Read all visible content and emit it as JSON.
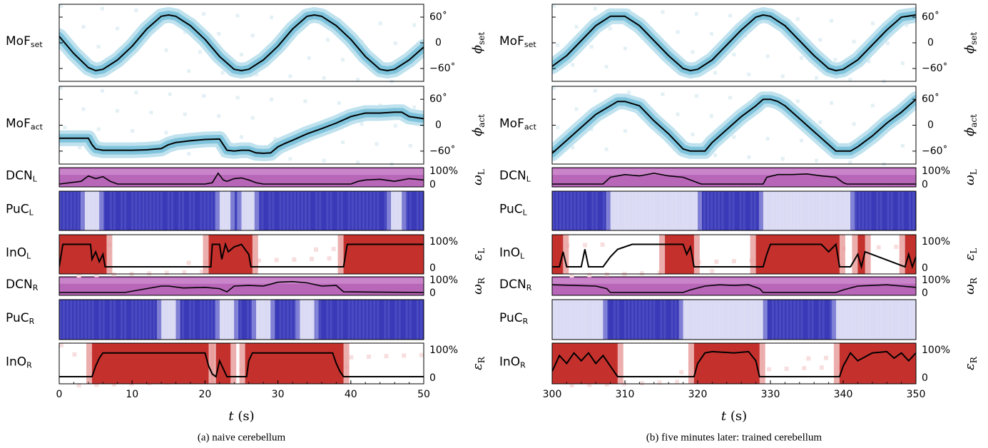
{
  "chart_data": [
    {
      "type": "heatmap",
      "caption": "(a) naive cerebellum",
      "xlabel_var": "t",
      "xlabel_unit": "(s)",
      "xlim": [
        0,
        50
      ],
      "xticks": [
        0,
        10,
        20,
        30,
        40,
        50
      ],
      "phi_set": {
        "row_label": "MoF",
        "row_sub": "set",
        "right_label": "ϕ",
        "right_sub": "set",
        "ylim": [
          -90,
          90
        ],
        "yticks": [
          "60˚",
          "0",
          "−60˚"
        ],
        "t": [
          0,
          2,
          4,
          5,
          6,
          8,
          10,
          12,
          14,
          15,
          16,
          18,
          20,
          22,
          24,
          25,
          26,
          28,
          30,
          32,
          34,
          35,
          36,
          38,
          40,
          42,
          44,
          45,
          46,
          48,
          50
        ],
        "deg": [
          15,
          -25,
          -58,
          -65,
          -62,
          -40,
          -8,
          32,
          62,
          65,
          62,
          40,
          8,
          -32,
          -62,
          -65,
          -62,
          -40,
          -8,
          32,
          62,
          65,
          62,
          40,
          8,
          -32,
          -62,
          -65,
          -62,
          -40,
          -10
        ]
      },
      "phi_act": {
        "row_label": "MoF",
        "row_sub": "act",
        "right_label": "ϕ",
        "right_sub": "act",
        "ylim": [
          -90,
          90
        ],
        "yticks": [
          "60˚",
          "0",
          "−60˚"
        ],
        "t": [
          0,
          2,
          4,
          4.5,
          5,
          6,
          8,
          10,
          12,
          14,
          15,
          16,
          18,
          20,
          22,
          22.5,
          23,
          24,
          25,
          26,
          27,
          28,
          29,
          30,
          31,
          32,
          34,
          36,
          38,
          40,
          42,
          44,
          46,
          47,
          48,
          50
        ],
        "deg": [
          -30,
          -30,
          -30,
          -45,
          -55,
          -58,
          -58,
          -58,
          -57,
          -54,
          -45,
          -40,
          -36,
          -33,
          -32,
          -45,
          -58,
          -60,
          -58,
          -58,
          -64,
          -65,
          -64,
          -50,
          -42,
          -35,
          -20,
          -8,
          5,
          20,
          28,
          28,
          30,
          30,
          20,
          15
        ]
      },
      "dcn_l": {
        "row_label": "DCN",
        "row_sub": "L",
        "right_label": "ω",
        "right_sub": "L",
        "yticks": [
          "100%",
          "0"
        ],
        "t": [
          0,
          3,
          4,
          5,
          6,
          7,
          8,
          20,
          21,
          21.8,
          22.5,
          23,
          24,
          25,
          26,
          27,
          28,
          40,
          41,
          42,
          44,
          46,
          48,
          50
        ],
        "val": [
          0,
          0.2,
          0.6,
          0.4,
          0.55,
          0.2,
          0,
          0,
          0.1,
          0.8,
          0.3,
          0.2,
          0.4,
          0.45,
          0.3,
          0.1,
          0,
          0,
          0.2,
          0.3,
          0.35,
          0.2,
          0.4,
          0.3
        ]
      },
      "puc_l": {
        "row_label": "PuC",
        "row_sub": "L",
        "white_bands": [
          [
            3.5,
            5.5
          ],
          [
            22,
            23.5
          ],
          [
            25,
            26.8
          ],
          [
            45.5,
            47
          ]
        ]
      },
      "ino_l": {
        "row_label": "InO",
        "row_sub": "L",
        "right_label": "ε",
        "right_sub": "L",
        "yticks": [
          "100%",
          "0"
        ],
        "red_bands": [
          [
            0,
            6.5
          ],
          [
            20.5,
            26.5
          ],
          [
            39,
            50
          ]
        ],
        "t": [
          0,
          0.5,
          4.3,
          4.5,
          5,
          5.5,
          6,
          6.3,
          20.8,
          21,
          22,
          22.3,
          22.8,
          23.2,
          24,
          25,
          26,
          26.3,
          39,
          39.5,
          50
        ],
        "val": [
          0,
          0.9,
          0.9,
          0.3,
          0.6,
          0.2,
          0.5,
          0,
          0,
          0.9,
          0.9,
          0.3,
          0.9,
          0.6,
          0.8,
          0.9,
          0.5,
          0,
          0,
          0.9,
          0.9
        ]
      },
      "dcn_r": {
        "row_label": "DCN",
        "row_sub": "R",
        "right_label": "ω",
        "right_sub": "R",
        "yticks": [
          "100%",
          "0"
        ],
        "t": [
          0,
          9,
          14,
          15,
          17,
          20,
          22,
          23,
          24,
          26,
          28,
          30,
          32,
          34,
          36,
          38,
          39,
          50
        ],
        "val": [
          0,
          0,
          0.5,
          0.5,
          0.35,
          0.4,
          0.3,
          0.05,
          0.5,
          0.55,
          0.5,
          0.8,
          0.85,
          0.75,
          0.5,
          0.55,
          0.05,
          0
        ]
      },
      "puc_r": {
        "row_label": "PuC",
        "row_sub": "R",
        "white_bands": [
          [
            14,
            16
          ],
          [
            22,
            24
          ],
          [
            27,
            29
          ],
          [
            33,
            35
          ]
        ]
      },
      "ino_r": {
        "row_label": "InO",
        "row_sub": "R",
        "right_label": "ε",
        "right_sub": "R",
        "yticks": [
          "100%",
          "0"
        ],
        "red_bands": [
          [
            4.5,
            20.5
          ],
          [
            21.5,
            23.5
          ],
          [
            25.5,
            39
          ]
        ],
        "t": [
          0,
          4.5,
          5,
          5.5,
          6,
          20,
          20.5,
          21,
          21.5,
          22,
          22.5,
          23,
          25.7,
          26,
          26.5,
          37.5,
          38,
          38.5,
          39,
          50
        ],
        "val": [
          0,
          0,
          0.4,
          0.7,
          0.9,
          0.9,
          0.4,
          0.1,
          0,
          0.6,
          0.3,
          0,
          0,
          0.6,
          0.9,
          0.9,
          0.5,
          0.2,
          0,
          0
        ]
      }
    },
    {
      "type": "heatmap",
      "caption": "(b) five minutes later: trained cerebellum",
      "xlabel_var": "t",
      "xlabel_unit": "(s)",
      "xlim": [
        300,
        350
      ],
      "xticks": [
        300,
        310,
        320,
        330,
        340,
        350
      ],
      "phi_set": {
        "row_label": "MoF",
        "row_sub": "set",
        "right_label": "ϕ",
        "right_sub": "set",
        "ylim": [
          -90,
          90
        ],
        "yticks": [
          "60˚",
          "0",
          "−60˚"
        ],
        "t": [
          300,
          302,
          304,
          306,
          308,
          310,
          312,
          314,
          316,
          318,
          319,
          320,
          322,
          324,
          326,
          328,
          329,
          330,
          332,
          334,
          336,
          338,
          339,
          340,
          342,
          344,
          346,
          348,
          350
        ],
        "deg": [
          -55,
          -30,
          5,
          40,
          62,
          62,
          40,
          5,
          -30,
          -60,
          -65,
          -62,
          -40,
          -5,
          30,
          60,
          65,
          62,
          40,
          5,
          -30,
          -60,
          -65,
          -62,
          -40,
          -5,
          30,
          60,
          65
        ]
      },
      "phi_act": {
        "row_label": "MoF",
        "row_sub": "act",
        "right_label": "ϕ",
        "right_sub": "act",
        "ylim": [
          -90,
          90
        ],
        "yticks": [
          "60˚",
          "0",
          "−60˚"
        ],
        "t": [
          300,
          302,
          304,
          306,
          308,
          309,
          310,
          312,
          314,
          316,
          318,
          319,
          320,
          321,
          322,
          324,
          326,
          328,
          329,
          330,
          331,
          332,
          334,
          336,
          338,
          339,
          340,
          341,
          342,
          344,
          346,
          348,
          350
        ],
        "deg": [
          -65,
          -35,
          -5,
          25,
          45,
          55,
          55,
          45,
          10,
          -20,
          -55,
          -60,
          -60,
          -60,
          -40,
          -10,
          20,
          45,
          60,
          60,
          55,
          45,
          15,
          -15,
          -45,
          -60,
          -60,
          -60,
          -50,
          -25,
          5,
          30,
          60
        ]
      },
      "dcn_l": {
        "row_label": "DCN",
        "row_sub": "L",
        "right_label": "ω",
        "right_sub": "L",
        "yticks": [
          "100%",
          "0"
        ],
        "t": [
          300,
          307,
          308,
          310,
          312,
          314,
          316,
          318,
          320,
          320.5,
          329,
          329.5,
          331,
          333,
          335,
          337,
          339,
          340,
          340.5,
          350
        ],
        "val": [
          0,
          0,
          0.5,
          0.7,
          0.6,
          0.8,
          0.6,
          0.5,
          0.1,
          0,
          0,
          0.5,
          0.7,
          0.7,
          0.75,
          0.6,
          0.5,
          0.1,
          0,
          0
        ]
      },
      "puc_l": {
        "row_label": "PuC",
        "row_sub": "L",
        "white_bands": [
          [
            308,
            320
          ],
          [
            329,
            341
          ]
        ]
      },
      "ino_l": {
        "row_label": "InO",
        "row_sub": "L",
        "right_label": "ε",
        "right_sub": "L",
        "yticks": [
          "100%",
          "0"
        ],
        "red_bands": [
          [
            300,
            301.5
          ],
          [
            315.5,
            319.5
          ],
          [
            328,
            339.5
          ],
          [
            342,
            343
          ],
          [
            348.5,
            350
          ]
        ],
        "t": [
          300,
          301,
          301.5,
          302,
          304,
          304.5,
          305,
          307,
          308,
          309,
          310,
          311,
          312,
          318,
          318.5,
          319,
          319.5,
          329,
          329.5,
          330,
          331,
          337,
          338,
          339,
          339.5,
          341,
          342,
          342.5,
          343,
          348.5,
          349,
          349.5,
          350
        ],
        "val": [
          0,
          0,
          0.6,
          0,
          0,
          0.7,
          0,
          0,
          0.4,
          0.7,
          0.8,
          0.9,
          0.9,
          0.9,
          0.5,
          0.8,
          0,
          0,
          0.5,
          0.9,
          0.9,
          0.9,
          0.6,
          0.9,
          0,
          0,
          0.5,
          0,
          0.6,
          0,
          0.5,
          0,
          0.4
        ]
      },
      "dcn_r": {
        "row_label": "DCN",
        "row_sub": "R",
        "right_label": "ω",
        "right_sub": "R",
        "yticks": [
          "100%",
          "0"
        ],
        "t": [
          300,
          303,
          306,
          307.5,
          308,
          318,
          319,
          321,
          323,
          325,
          327,
          328.5,
          329,
          339,
          340,
          342,
          344,
          346,
          348,
          350
        ],
        "val": [
          0.6,
          0.55,
          0.5,
          0.3,
          0,
          0,
          0.2,
          0.5,
          0.6,
          0.55,
          0.6,
          0.3,
          0,
          0,
          0.2,
          0.5,
          0.55,
          0.6,
          0.5,
          0.4
        ]
      },
      "puc_r": {
        "row_label": "PuC",
        "row_sub": "R",
        "white_bands": [
          [
            300,
            307
          ],
          [
            318,
            329
          ],
          [
            339,
            350
          ]
        ]
      },
      "ino_r": {
        "row_label": "InO",
        "row_sub": "R",
        "right_label": "ε",
        "right_sub": "R",
        "yticks": [
          "100%",
          "0"
        ],
        "red_bands": [
          [
            300,
            309
          ],
          [
            319.5,
            328.5
          ],
          [
            339.5,
            350
          ]
        ],
        "t": [
          300,
          301,
          302,
          303,
          304,
          305,
          306,
          307,
          308,
          308.5,
          309,
          319.5,
          320,
          321,
          322,
          325,
          327,
          328,
          328.5,
          339.5,
          340,
          341,
          342,
          344,
          346,
          347,
          348,
          349,
          350
        ],
        "val": [
          0.2,
          0.8,
          0.5,
          0.9,
          0.6,
          0.9,
          0.5,
          0.8,
          0.4,
          0.2,
          0,
          0,
          0.5,
          0.9,
          0.95,
          0.9,
          0.95,
          0.6,
          0,
          0,
          0.4,
          0.9,
          0.6,
          0.9,
          0.95,
          0.7,
          0.9,
          0.6,
          0.9
        ]
      }
    }
  ]
}
